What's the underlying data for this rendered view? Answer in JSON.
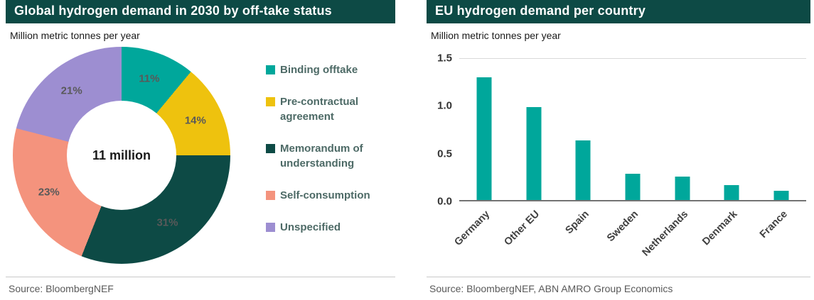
{
  "chart_data": [
    {
      "type": "pie",
      "donut": true,
      "title": "Global hydrogen demand in 2030 by off-take status",
      "units_label": "Million metric tonnes per year",
      "center_label": "11 million",
      "labels": [
        "Binding offtake",
        "Pre-contractual agreement",
        "Memorandum of understanding",
        "Self-consumption",
        "Unspecified"
      ],
      "values": [
        11,
        14,
        31,
        23,
        21
      ],
      "value_suffix": "%",
      "colors": [
        "#00a79b",
        "#eec20e",
        "#0d4a45",
        "#f4937d",
        "#9d8ed1"
      ],
      "legend_position": "right",
      "source": "Source: BloombergNEF"
    },
    {
      "type": "bar",
      "title": "EU hydrogen demand per country",
      "units_label": "Million metric tonnes per year",
      "categories": [
        "Germany",
        "Other EU",
        "Spain",
        "Sweden",
        "Netherlands",
        "Denmark",
        "France"
      ],
      "values": [
        1.3,
        0.98,
        0.63,
        0.28,
        0.25,
        0.16,
        0.1
      ],
      "ylim": [
        0,
        1.5
      ],
      "ytick_labels": [
        "0.0",
        "0.5",
        "1.0",
        "1.5"
      ],
      "bar_color": "#00a79b",
      "grid": "top-line-only",
      "xlabel_rotation_deg": -45,
      "source": "Source: BloombergNEF, ABN AMRO Group Economics"
    }
  ],
  "colors": {
    "header_bg": "#0d4a45",
    "header_text": "#ffffff",
    "slice_label_text": "#595959",
    "legend_text": "#4d6a66",
    "axis_text": "#333333",
    "source_text": "#595959"
  }
}
